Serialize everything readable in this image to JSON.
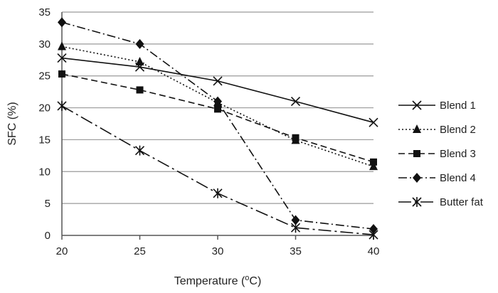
{
  "chart_data": {
    "type": "line",
    "title": "",
    "xlabel": {
      "prefix": "Temperature (",
      "sup": "o",
      "suffix": "C)"
    },
    "ylabel": "SFC (%)",
    "x": [
      20,
      25,
      30,
      35,
      40
    ],
    "xlim": [
      20,
      40
    ],
    "ylim": [
      0,
      35
    ],
    "xticks": [
      "20",
      "25",
      "30",
      "35",
      "40"
    ],
    "yticks": [
      "0",
      "5",
      "10",
      "15",
      "20",
      "25",
      "30",
      "35"
    ],
    "grid": "horizontal",
    "legend_position": "right",
    "series": [
      {
        "name": "Blend 1",
        "values": [
          27.8,
          26.4,
          24.2,
          21.0,
          17.7
        ],
        "marker": "x",
        "dash": "solid"
      },
      {
        "name": "Blend 2",
        "values": [
          29.6,
          27.2,
          20.8,
          14.9,
          10.8
        ],
        "marker": "triangle",
        "dash": "dot"
      },
      {
        "name": "Blend 3",
        "values": [
          25.3,
          22.8,
          19.8,
          15.3,
          11.5
        ],
        "marker": "square",
        "dash": "dash"
      },
      {
        "name": "Blend 4",
        "values": [
          33.4,
          30.0,
          21.0,
          2.4,
          1.0
        ],
        "marker": "diamond",
        "dash": "dashdot"
      },
      {
        "name": "Butter fat",
        "values": [
          20.3,
          13.3,
          6.6,
          1.2,
          0.1
        ],
        "marker": "asterisk",
        "dash": "longdashdot"
      }
    ]
  }
}
